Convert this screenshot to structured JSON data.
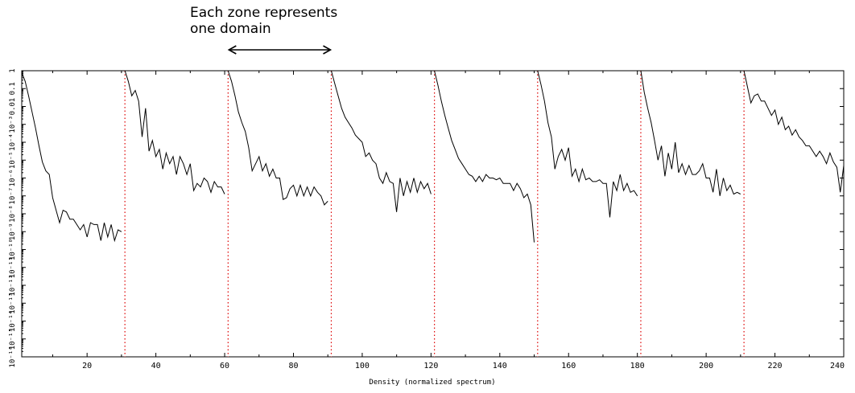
{
  "annotation": {
    "line1": "Each zone represents",
    "line2": "one domain"
  },
  "chart_data": {
    "type": "line",
    "title": "",
    "xlabel": "Density (normalized spectrum)",
    "ylabel": "",
    "xlim": [
      1,
      240
    ],
    "ylim_exponent": [
      -16,
      0
    ],
    "y_scale": "log",
    "x_ticks": [
      20,
      40,
      60,
      80,
      100,
      120,
      140,
      160,
      180,
      200,
      220,
      240
    ],
    "y_ticks": [
      "10⁻¹⁶",
      "10⁻¹⁵",
      "10⁻¹⁴",
      "10⁻¹³",
      "10⁻¹²",
      "10⁻¹¹",
      "10⁻¹⁰",
      "10⁻⁹",
      "10⁻⁸",
      "10⁻⁷",
      "10⁻⁶",
      "10⁻⁵",
      "10⁻⁴",
      "10⁻³",
      "0.01",
      "0.1",
      "1"
    ],
    "domain_boundaries": [
      31,
      61,
      91,
      121,
      151,
      181,
      211
    ],
    "colors": {
      "line": "#000000",
      "boundary": "#dd0000",
      "arrow": "#000000"
    },
    "arrow_range": [
      61,
      91
    ],
    "segments": [
      {
        "x": [
          1,
          2,
          3,
          4,
          5,
          6,
          7,
          8,
          9,
          10,
          11,
          12,
          13,
          14,
          15,
          16,
          17,
          18,
          19,
          20,
          21,
          22,
          23,
          24,
          25,
          26,
          27,
          28,
          29,
          30
        ],
        "log10_y": [
          -0.1,
          -0.6,
          -1.4,
          -2.3,
          -3.2,
          -4.2,
          -5.1,
          -5.6,
          -5.8,
          -7.1,
          -7.8,
          -8.5,
          -7.8,
          -7.9,
          -8.3,
          -8.3,
          -8.6,
          -8.9,
          -8.6,
          -9.3,
          -8.5,
          -8.6,
          -8.6,
          -9.5,
          -8.5,
          -9.3,
          -8.6,
          -9.5,
          -8.9,
          -9.0
        ]
      },
      {
        "x": [
          31,
          32,
          33,
          34,
          35,
          36,
          37,
          38,
          39,
          40,
          41,
          42,
          43,
          44,
          45,
          46,
          47,
          48,
          49,
          50,
          51,
          52,
          53,
          54,
          55,
          56,
          57,
          58,
          59,
          60
        ],
        "log10_y": [
          0.0,
          -0.6,
          -1.4,
          -1.1,
          -1.7,
          -3.7,
          -2.1,
          -4.5,
          -3.9,
          -4.8,
          -4.4,
          -5.5,
          -4.6,
          -5.2,
          -4.8,
          -5.8,
          -4.8,
          -5.2,
          -5.8,
          -5.2,
          -6.7,
          -6.3,
          -6.5,
          -6.0,
          -6.2,
          -6.8,
          -6.2,
          -6.5,
          -6.5,
          -6.9
        ]
      },
      {
        "x": [
          61,
          62,
          63,
          64,
          65,
          66,
          67,
          68,
          69,
          70,
          71,
          72,
          73,
          74,
          75,
          76,
          77,
          78,
          79,
          80,
          81,
          82,
          83,
          84,
          85,
          86,
          87,
          88,
          89,
          90
        ],
        "log10_y": [
          0.0,
          -0.6,
          -1.4,
          -2.3,
          -2.9,
          -3.4,
          -4.3,
          -5.6,
          -5.2,
          -4.8,
          -5.6,
          -5.2,
          -5.9,
          -5.5,
          -6.0,
          -6.0,
          -7.2,
          -7.1,
          -6.6,
          -6.4,
          -7.0,
          -6.4,
          -7.0,
          -6.5,
          -7.0,
          -6.5,
          -6.8,
          -7.0,
          -7.5,
          -7.3
        ]
      },
      {
        "x": [
          91,
          92,
          93,
          94,
          95,
          96,
          97,
          98,
          99,
          100,
          101,
          102,
          103,
          104,
          105,
          106,
          107,
          108,
          109,
          110,
          111,
          112,
          113,
          114,
          115,
          116,
          117,
          118,
          119,
          120
        ],
        "log10_y": [
          0.0,
          -0.7,
          -1.4,
          -2.1,
          -2.6,
          -2.9,
          -3.2,
          -3.6,
          -3.8,
          -4.0,
          -4.8,
          -4.6,
          -5.0,
          -5.2,
          -6.0,
          -6.3,
          -5.7,
          -6.2,
          -6.3,
          -7.9,
          -6.0,
          -7.0,
          -6.2,
          -6.8,
          -6.0,
          -6.8,
          -6.2,
          -6.6,
          -6.3,
          -6.9
        ]
      },
      {
        "x": [
          121,
          122,
          123,
          124,
          125,
          126,
          127,
          128,
          129,
          130,
          131,
          132,
          133,
          134,
          135,
          136,
          137,
          138,
          139,
          140,
          141,
          142,
          143,
          144,
          145,
          146,
          147,
          148,
          149,
          150
        ],
        "log10_y": [
          0.0,
          -0.8,
          -1.7,
          -2.5,
          -3.2,
          -3.9,
          -4.4,
          -4.9,
          -5.2,
          -5.5,
          -5.8,
          -5.9,
          -6.2,
          -5.9,
          -6.2,
          -5.8,
          -6.0,
          -6.0,
          -6.1,
          -6.0,
          -6.3,
          -6.3,
          -6.3,
          -6.7,
          -6.3,
          -6.6,
          -7.1,
          -6.9,
          -7.5,
          -9.6
        ]
      },
      {
        "x": [
          151,
          152,
          153,
          154,
          155,
          156,
          157,
          158,
          159,
          160,
          161,
          162,
          163,
          164,
          165,
          166,
          167,
          168,
          169,
          170,
          171,
          172,
          173,
          174,
          175,
          176,
          177,
          178,
          179,
          180
        ],
        "log10_y": [
          0.0,
          -0.8,
          -1.7,
          -2.9,
          -3.7,
          -5.5,
          -4.8,
          -4.4,
          -5.0,
          -4.3,
          -5.9,
          -5.5,
          -6.2,
          -5.5,
          -6.1,
          -6.0,
          -6.2,
          -6.2,
          -6.1,
          -6.3,
          -6.3,
          -8.2,
          -6.2,
          -6.7,
          -5.8,
          -6.7,
          -6.3,
          -6.8,
          -6.7,
          -7.0
        ]
      },
      {
        "x": [
          181,
          182,
          183,
          184,
          185,
          186,
          187,
          188,
          189,
          190,
          191,
          192,
          193,
          194,
          195,
          196,
          197,
          198,
          199,
          200,
          201,
          202,
          203,
          204,
          205,
          206,
          207,
          208,
          209,
          210
        ],
        "log10_y": [
          0.0,
          -1.2,
          -2.1,
          -2.9,
          -3.9,
          -5.0,
          -4.2,
          -5.9,
          -4.6,
          -5.5,
          -4.0,
          -5.7,
          -5.2,
          -5.8,
          -5.3,
          -5.8,
          -5.8,
          -5.6,
          -5.2,
          -6.0,
          -6.0,
          -6.8,
          -5.5,
          -7.0,
          -6.0,
          -6.7,
          -6.4,
          -6.9,
          -6.8,
          -6.9
        ]
      },
      {
        "x": [
          211,
          212,
          213,
          214,
          215,
          216,
          217,
          218,
          219,
          220,
          221,
          222,
          223,
          224,
          225,
          226,
          227,
          228,
          229,
          230,
          231,
          232,
          233,
          234,
          235,
          236,
          237,
          238,
          239,
          240
        ],
        "log10_y": [
          0.0,
          -0.9,
          -1.8,
          -1.4,
          -1.3,
          -1.7,
          -1.7,
          -2.1,
          -2.5,
          -2.2,
          -3.0,
          -2.6,
          -3.3,
          -3.1,
          -3.6,
          -3.3,
          -3.7,
          -3.9,
          -4.2,
          -4.2,
          -4.5,
          -4.8,
          -4.5,
          -4.8,
          -5.2,
          -4.6,
          -5.1,
          -5.4,
          -6.8,
          -5.3
        ]
      }
    ]
  }
}
